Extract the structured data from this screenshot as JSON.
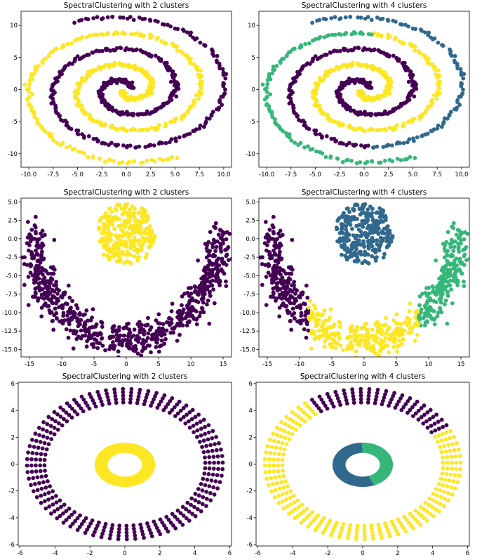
{
  "palette": {
    "c2": [
      "#440154",
      "#fde725"
    ],
    "c4": [
      "#440154",
      "#31688e",
      "#35b779",
      "#fde725"
    ]
  },
  "chart_data": [
    {
      "type": "scatter",
      "dataset": "spirals",
      "title": "SpectralClustering with 2 clusters",
      "n_clusters": 2,
      "xlim": [
        -10.8,
        10.8
      ],
      "ylim": [
        -12.1,
        12.2
      ],
      "xticks": [
        "-10.0",
        "-7.5",
        "-5.0",
        "-2.5",
        "0.0",
        "2.5",
        "5.0",
        "7.5",
        "10.0"
      ],
      "xtick_values": [
        -10,
        -7.5,
        -5,
        -2.5,
        0,
        2.5,
        5,
        7.5,
        10
      ],
      "yticks": [
        "10",
        "5",
        "0",
        "-5",
        "-10"
      ],
      "ytick_values": [
        10,
        5,
        0,
        -5,
        -10
      ]
    },
    {
      "type": "scatter",
      "dataset": "spirals",
      "title": "SpectralClustering with 4 clusters",
      "n_clusters": 4,
      "xlim": [
        -10.8,
        10.8
      ],
      "ylim": [
        -12.1,
        12.2
      ],
      "xticks": [
        "-10.0",
        "-7.5",
        "-5.0",
        "-2.5",
        "0.0",
        "2.5",
        "5.0",
        "7.5",
        "10.0"
      ],
      "xtick_values": [
        -10,
        -7.5,
        -5,
        -2.5,
        0,
        2.5,
        5,
        7.5,
        10
      ],
      "yticks": [
        "10",
        "5",
        "0",
        "-5",
        "-10"
      ],
      "ytick_values": [
        10,
        5,
        0,
        -5,
        -10
      ]
    },
    {
      "type": "scatter",
      "dataset": "moon_and_blob",
      "title": "SpectralClustering with 2 clusters",
      "n_clusters": 2,
      "xlim": [
        -16.3,
        16.3
      ],
      "ylim": [
        -16.0,
        5.5
      ],
      "xticks": [
        "-15",
        "-10",
        "-5",
        "0",
        "5",
        "10",
        "15"
      ],
      "xtick_values": [
        -15,
        -10,
        -5,
        0,
        5,
        10,
        15
      ],
      "yticks": [
        "5.0",
        "2.5",
        "0.0",
        "-2.5",
        "-5.0",
        "-7.5",
        "-10.0",
        "-12.5",
        "-15.0"
      ],
      "ytick_values": [
        5,
        2.5,
        0,
        -2.5,
        -5,
        -7.5,
        -10,
        -12.5,
        -15
      ]
    },
    {
      "type": "scatter",
      "dataset": "moon_and_blob",
      "title": "SpectralClustering with 4 clusters",
      "n_clusters": 4,
      "xlim": [
        -16.3,
        16.3
      ],
      "ylim": [
        -16.0,
        5.5
      ],
      "xticks": [
        "-15",
        "-10",
        "-5",
        "0",
        "5",
        "10",
        "15"
      ],
      "xtick_values": [
        -15,
        -10,
        -5,
        0,
        5,
        10,
        15
      ],
      "yticks": [
        "5.0",
        "2.5",
        "0.0",
        "-2.5",
        "-5.0",
        "-7.5",
        "-10.0",
        "-12.5",
        "-15.0"
      ],
      "ytick_values": [
        5,
        2.5,
        0,
        -2.5,
        -5,
        -7.5,
        -10,
        -12.5,
        -15
      ]
    },
    {
      "type": "scatter",
      "dataset": "rings",
      "title": "SpectralClustering with 2 clusters",
      "n_clusters": 2,
      "xlim": [
        -6.1,
        6.1
      ],
      "ylim": [
        -6.1,
        6.1
      ],
      "xticks": [
        "-6",
        "-4",
        "-2",
        "0",
        "2",
        "4",
        "6"
      ],
      "xtick_values": [
        -6,
        -4,
        -2,
        0,
        2,
        4,
        6
      ],
      "yticks": [
        "6",
        "4",
        "2",
        "0",
        "-2",
        "-4",
        "-6"
      ],
      "ytick_values": [
        6,
        4,
        2,
        0,
        -2,
        -4,
        -6
      ]
    },
    {
      "type": "scatter",
      "dataset": "rings",
      "title": "SpectralClustering with 4 clusters",
      "n_clusters": 4,
      "xlim": [
        -6.1,
        6.1
      ],
      "ylim": [
        -6.1,
        6.1
      ],
      "xticks": [
        "-6",
        "-4",
        "-2",
        "0",
        "2",
        "4",
        "6"
      ],
      "xtick_values": [
        -6,
        -4,
        -2,
        0,
        2,
        4,
        6
      ],
      "yticks": [
        "6",
        "4",
        "2",
        "0",
        "-2",
        "-4",
        "-6"
      ],
      "ytick_values": [
        6,
        4,
        2,
        0,
        -2,
        -4,
        -6
      ]
    }
  ]
}
